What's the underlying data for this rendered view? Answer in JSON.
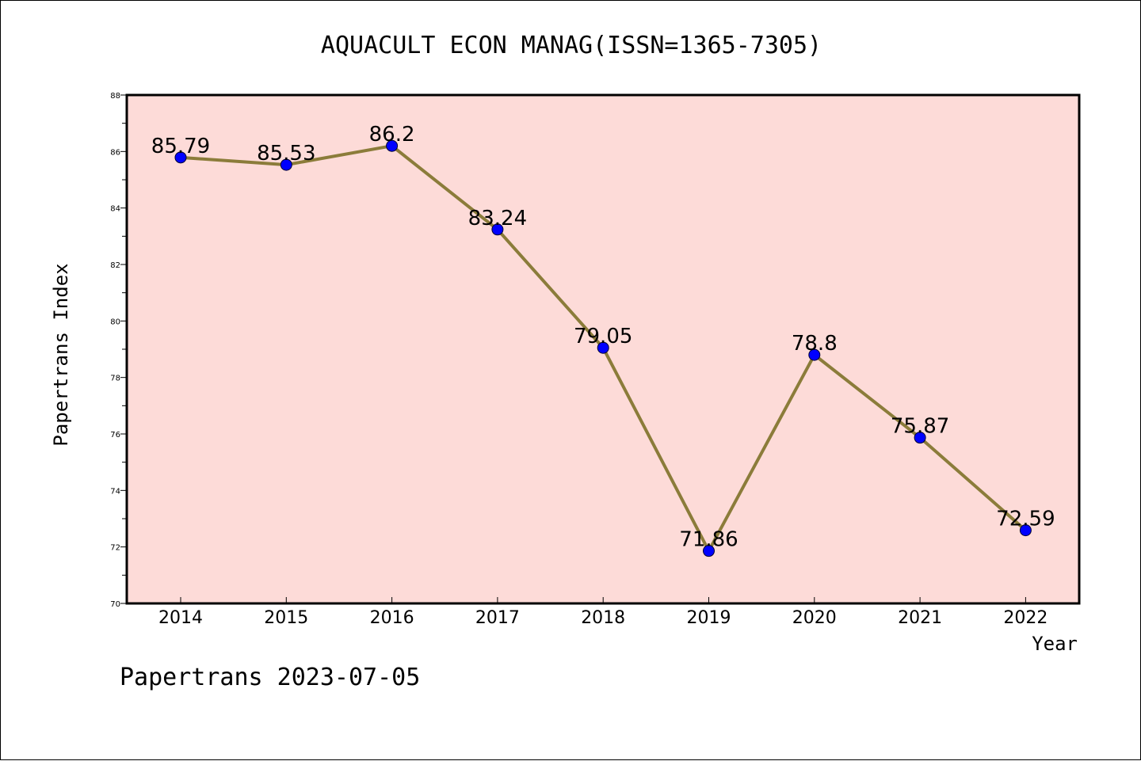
{
  "colors": {
    "plot_background": "#fddbd8",
    "line": "#8b7c3a",
    "marker": "#0000ff",
    "axis": "#000000"
  },
  "footer": "Papertrans 2023-07-05",
  "chart_data": {
    "type": "line",
    "title": "AQUACULT ECON MANAG(ISSN=1365-7305)",
    "xlabel": "Year",
    "ylabel": "Papertrans Index",
    "ylim": [
      70,
      88
    ],
    "yticks": [
      70,
      72,
      74,
      76,
      78,
      80,
      82,
      84,
      86,
      88
    ],
    "grid": false,
    "categories": [
      "2014",
      "2015",
      "2016",
      "2017",
      "2018",
      "2019",
      "2020",
      "2021",
      "2022"
    ],
    "series": [
      {
        "values": [
          85.79,
          85.53,
          86.2,
          83.24,
          79.05,
          71.86,
          78.8,
          75.87,
          72.59
        ],
        "labels": [
          "85.79",
          "85.53",
          "86.2",
          "83.24",
          "79.05",
          "71.86",
          "78.8",
          "75.87",
          "72.59"
        ]
      }
    ]
  }
}
